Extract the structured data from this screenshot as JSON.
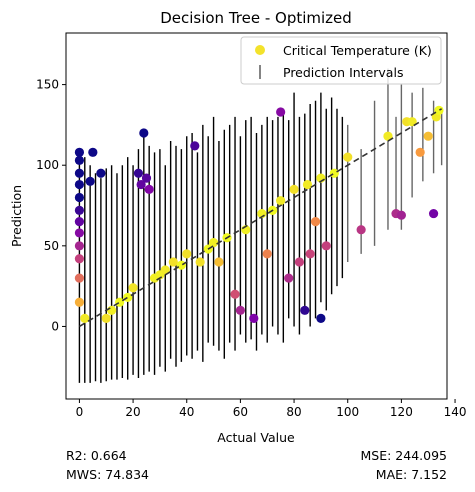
{
  "chart_data": {
    "type": "scatter",
    "title": "Decision Tree - Optimized",
    "xlabel": "Actual Value",
    "ylabel": "Prediction",
    "xlim": [
      -5,
      137
    ],
    "ylim": [
      -45,
      182
    ],
    "xticks": [
      0,
      20,
      40,
      60,
      80,
      100,
      120,
      140
    ],
    "yticks": [
      0,
      50,
      100,
      150
    ],
    "grid": false,
    "legend": {
      "placement": "top-right",
      "entries": [
        {
          "label": "Critical Temperature (K)",
          "marker": "dot",
          "color": "#f3e22b"
        },
        {
          "label": "Prediction Intervals",
          "marker": "vline",
          "color": "#666666"
        }
      ]
    },
    "colormap": "plasma",
    "reference_line": {
      "x": [
        0,
        135
      ],
      "y": [
        0,
        135
      ],
      "style": "dashed",
      "color": "#333333"
    },
    "series": [
      {
        "name": "Critical Temperature (K)",
        "x": [
          0,
          0,
          0,
          0,
          0,
          0,
          0,
          0,
          0,
          0,
          0,
          0,
          2,
          4,
          5,
          8,
          10,
          12,
          15,
          18,
          20,
          22,
          23,
          24,
          25,
          26,
          28,
          30,
          32,
          35,
          38,
          40,
          43,
          45,
          48,
          50,
          52,
          55,
          58,
          60,
          62,
          65,
          68,
          70,
          72,
          75,
          75,
          78,
          80,
          82,
          84,
          85,
          86,
          88,
          90,
          90,
          92,
          95,
          100,
          105,
          115,
          118,
          120,
          122,
          124,
          127,
          130,
          132,
          133,
          134
        ],
        "y": [
          108,
          103,
          95,
          88,
          80,
          72,
          65,
          58,
          50,
          42,
          30,
          15,
          5,
          90,
          108,
          95,
          5,
          10,
          15,
          18,
          24,
          95,
          88,
          120,
          92,
          85,
          30,
          32,
          35,
          40,
          38,
          45,
          112,
          40,
          48,
          52,
          40,
          55,
          20,
          10,
          60,
          5,
          70,
          45,
          72,
          78,
          133,
          30,
          85,
          40,
          10,
          88,
          45,
          65,
          5,
          92,
          50,
          95,
          105,
          60,
          118,
          70,
          69,
          127,
          127,
          108,
          118,
          70,
          130,
          134
        ],
        "color_values": [
          108,
          103,
          95,
          88,
          80,
          72,
          65,
          58,
          50,
          42,
          30,
          15,
          5,
          90,
          108,
          95,
          5,
          10,
          15,
          18,
          24,
          95,
          88,
          120,
          92,
          85,
          30,
          32,
          35,
          40,
          38,
          45,
          112,
          40,
          48,
          52,
          40,
          55,
          20,
          10,
          60,
          5,
          70,
          45,
          72,
          78,
          133,
          30,
          85,
          40,
          10,
          88,
          45,
          65,
          5,
          92,
          50,
          95,
          105,
          60,
          118,
          70,
          69,
          127,
          127,
          108,
          118,
          70,
          130,
          134
        ]
      }
    ],
    "error_bars": {
      "name": "Prediction Intervals",
      "color": "#000000",
      "x": [
        0,
        2,
        4,
        6,
        8,
        10,
        12,
        14,
        16,
        18,
        20,
        22,
        24,
        26,
        28,
        30,
        32,
        34,
        36,
        38,
        40,
        42,
        44,
        46,
        48,
        50,
        52,
        54,
        56,
        58,
        60,
        62,
        64,
        66,
        68,
        70,
        72,
        74,
        76,
        78,
        80,
        82,
        84,
        86,
        88,
        90,
        92,
        94,
        96,
        98,
        100,
        105,
        110,
        115,
        118,
        120,
        124,
        128,
        132,
        135
      ],
      "low": [
        -35,
        -35,
        -35,
        -34,
        -35,
        -34,
        -33,
        -33,
        -32,
        -33,
        -30,
        -32,
        -30,
        -28,
        -30,
        -25,
        -28,
        -20,
        -25,
        -22,
        -18,
        -20,
        -15,
        -22,
        -10,
        -12,
        -15,
        -20,
        -10,
        -15,
        -5,
        -10,
        -8,
        -15,
        -5,
        -10,
        0,
        -5,
        -10,
        5,
        0,
        -5,
        10,
        0,
        5,
        15,
        10,
        20,
        25,
        30,
        40,
        45,
        50,
        60,
        70,
        60,
        80,
        90,
        95,
        100
      ],
      "high": [
        110,
        105,
        100,
        95,
        92,
        98,
        100,
        95,
        100,
        105,
        100,
        110,
        120,
        112,
        108,
        110,
        100,
        115,
        112,
        110,
        118,
        120,
        108,
        125,
        118,
        130,
        115,
        122,
        125,
        130,
        118,
        128,
        130,
        120,
        125,
        130,
        128,
        130,
        135,
        128,
        145,
        130,
        132,
        138,
        140,
        145,
        135,
        142,
        135,
        130,
        125,
        110,
        140,
        160,
        130,
        150,
        145,
        148,
        140,
        136
      ]
    }
  },
  "metrics": {
    "r2": "R2: 0.664",
    "mws": "MWS: 74.834",
    "mse": "MSE: 244.095",
    "mae": "MAE: 7.152"
  }
}
